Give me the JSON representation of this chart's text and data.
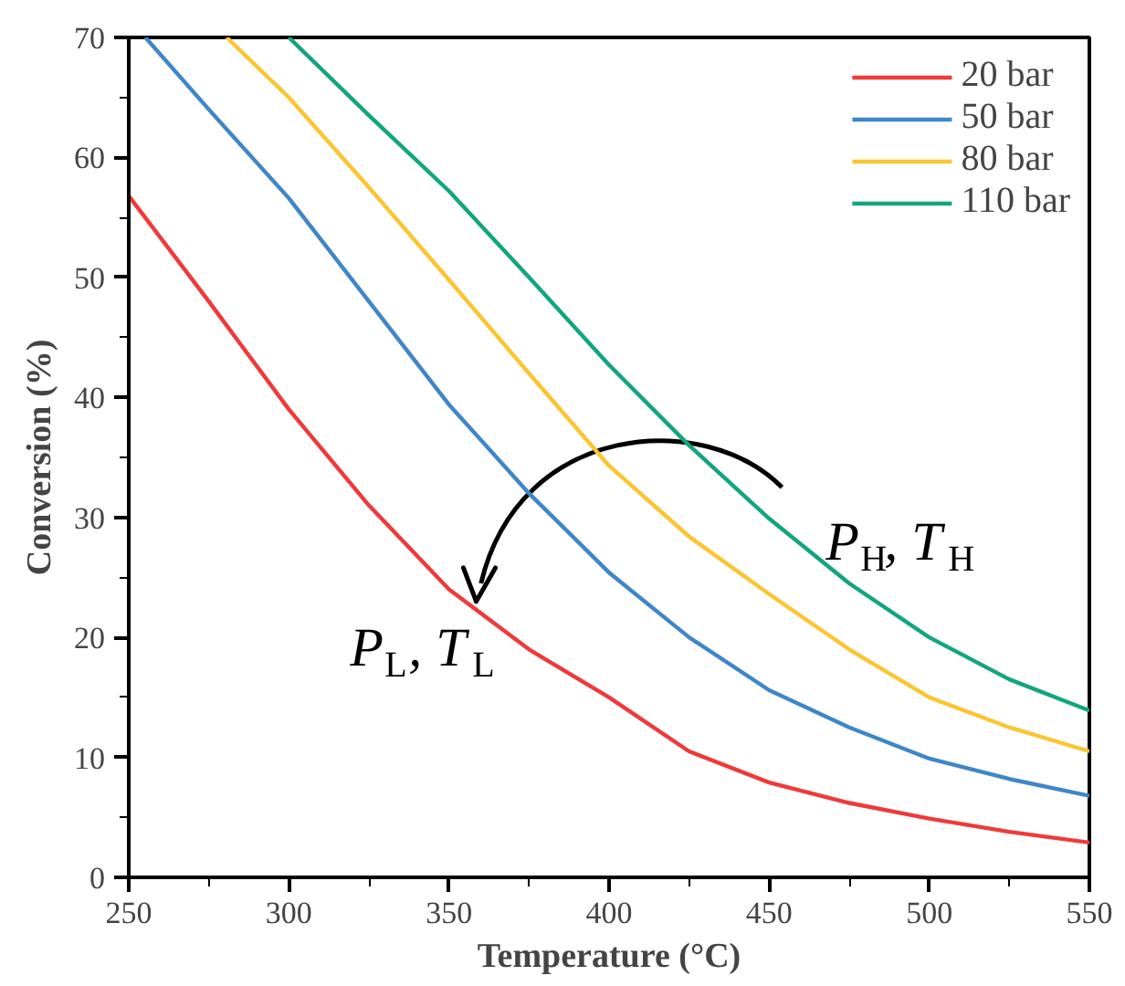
{
  "chart_data": {
    "type": "line",
    "xlabel": "Temperature (°C)",
    "ylabel": "Conversion (%)",
    "xlim": [
      250,
      550
    ],
    "xticks": [
      250,
      300,
      350,
      400,
      450,
      500,
      550
    ],
    "ylim": [
      0,
      70
    ],
    "yticks": [
      0,
      10,
      20,
      30,
      40,
      50,
      60,
      70
    ],
    "grid": false,
    "legend": "top right",
    "marker": "none",
    "line_style": "solid",
    "series": [
      {
        "name": "20 bar",
        "color": "#f0393a",
        "x": [
          250,
          275,
          300,
          325,
          350,
          375,
          400,
          425,
          450,
          475,
          500,
          525,
          550
        ],
        "values": [
          56.8,
          48,
          39,
          31,
          24,
          19,
          15,
          10.5,
          7.9,
          6.2,
          4.9,
          3.8,
          2.9
        ]
      },
      {
        "name": "50 bar",
        "color": "#3f86c8",
        "x": [
          255.2,
          275,
          300,
          325,
          350,
          375,
          400,
          425,
          450,
          475,
          500,
          525,
          550
        ],
        "values": [
          70,
          64,
          56.6,
          48,
          39.4,
          32,
          25.4,
          20,
          15.6,
          12.5,
          9.9,
          8.2,
          6.8
        ]
      },
      {
        "name": "80 bar",
        "color": "#fbc531",
        "x": [
          280.6,
          300,
          325,
          350,
          375,
          400,
          425,
          450,
          475,
          500,
          525,
          550
        ],
        "values": [
          70,
          65,
          57.5,
          49.8,
          42,
          34.3,
          28.4,
          23.6,
          19,
          15,
          12.5,
          10.5
        ]
      },
      {
        "name": "110 bar",
        "color": "#12a57e",
        "x": [
          300,
          325,
          350,
          375,
          400,
          425,
          450,
          475,
          500,
          525,
          550
        ],
        "values": [
          70,
          63.5,
          57.2,
          50,
          42.7,
          36,
          29.9,
          24.5,
          20,
          16.5,
          13.9
        ]
      }
    ],
    "annotations": [
      "P$_{H}$, T$_{H}$",
      "P$_{L}$, T$_{L}$"
    ]
  }
}
